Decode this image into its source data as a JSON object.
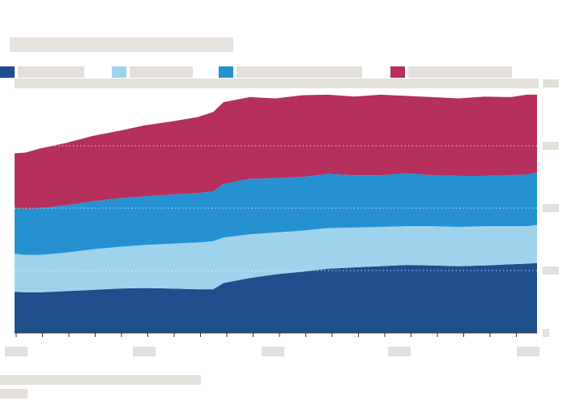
{
  "chart_data": {
    "type": "area",
    "stacked": true,
    "x_range": [
      0,
      100
    ],
    "ylim": [
      0,
      4
    ],
    "y_ticks": [
      0,
      1,
      2,
      3,
      4
    ],
    "grid": true,
    "legend_position": "top",
    "x": [
      0,
      2,
      5,
      10,
      15,
      20,
      25,
      30,
      35,
      38,
      40,
      45,
      50,
      55,
      60,
      65,
      70,
      75,
      80,
      85,
      90,
      95,
      98,
      100
    ],
    "series": [
      {
        "color": "#1f4e8c",
        "values": [
          0.66,
          0.65,
          0.65,
          0.67,
          0.69,
          0.71,
          0.72,
          0.71,
          0.7,
          0.7,
          0.8,
          0.88,
          0.94,
          0.98,
          1.03,
          1.05,
          1.07,
          1.09,
          1.08,
          1.07,
          1.08,
          1.1,
          1.11,
          1.12
        ]
      },
      {
        "color": "#9fd3ec",
        "values": [
          0.61,
          0.6,
          0.6,
          0.62,
          0.65,
          0.67,
          0.69,
          0.72,
          0.75,
          0.77,
          0.73,
          0.7,
          0.67,
          0.66,
          0.65,
          0.64,
          0.63,
          0.62,
          0.63,
          0.63,
          0.63,
          0.61,
          0.6,
          0.61
        ]
      },
      {
        "color": "#2591d1",
        "values": [
          0.73,
          0.74,
          0.75,
          0.76,
          0.77,
          0.78,
          0.78,
          0.79,
          0.79,
          0.8,
          0.86,
          0.89,
          0.87,
          0.86,
          0.87,
          0.84,
          0.83,
          0.85,
          0.82,
          0.82,
          0.81,
          0.82,
          0.83,
          0.84
        ]
      },
      {
        "color": "#b5305c",
        "values": [
          0.88,
          0.9,
          0.96,
          1.0,
          1.05,
          1.08,
          1.14,
          1.17,
          1.22,
          1.27,
          1.31,
          1.31,
          1.28,
          1.31,
          1.27,
          1.26,
          1.29,
          1.24,
          1.25,
          1.24,
          1.27,
          1.25,
          1.28,
          1.25
        ]
      }
    ]
  },
  "colors": {
    "grid": "#d9d4cf",
    "axis": "#333333",
    "placeholder": "#e3dfdb"
  }
}
